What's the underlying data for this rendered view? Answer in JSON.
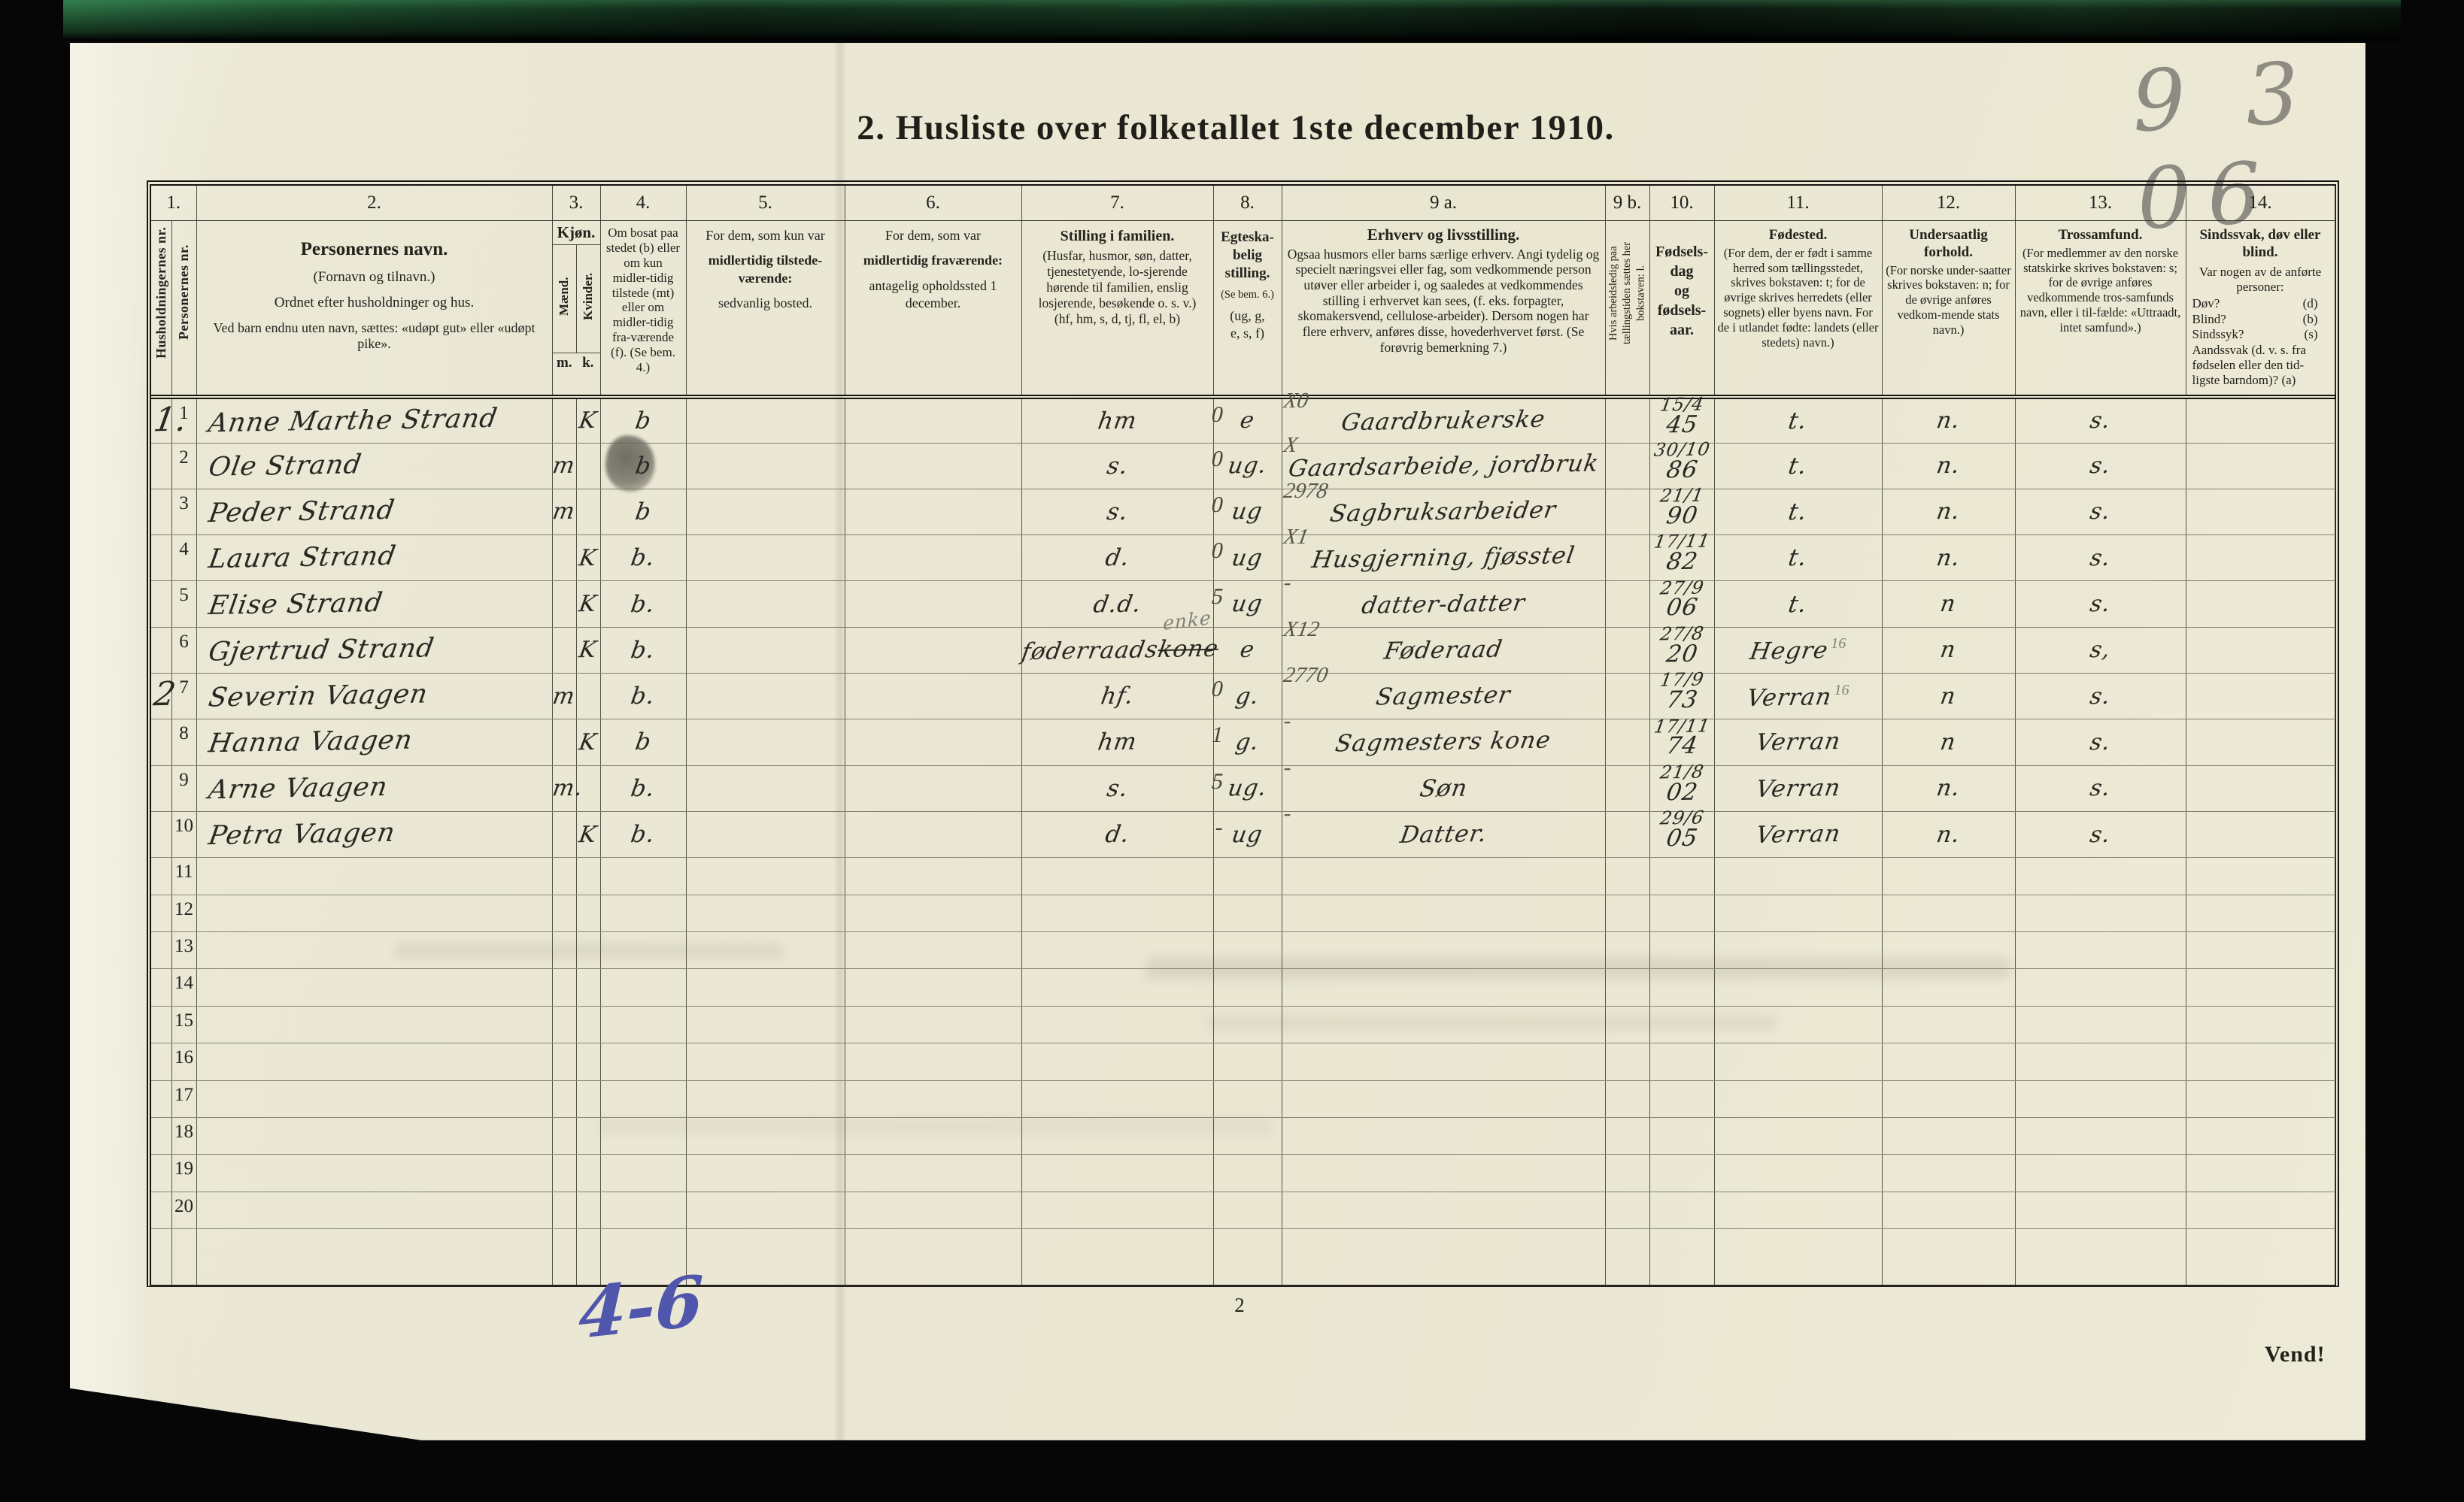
{
  "scan": {
    "title": "2. Husliste over folketallet 1ste december 1910.",
    "corner_note": "9 3 06",
    "blue_note": "4-6",
    "page_number": "2",
    "turn_label": "Vend!"
  },
  "table": {
    "col_numbers": [
      "1.",
      "2.",
      "3.",
      "4.",
      "5.",
      "6.",
      "7.",
      "8.",
      "9 a.",
      "9 b.",
      "10.",
      "11.",
      "12.",
      "13.",
      "14."
    ],
    "headers": {
      "hh_vertical": "Husholdningernes nr.",
      "pnr_vertical": "Personernes nr.",
      "name_title": "Personernes navn.",
      "name_sub1": "(Fornavn og tilnavn.)",
      "name_sub2": "Ordnet efter husholdninger og hus.",
      "name_sub3": "Ved barn endnu uten navn, sættes: «udøpt gut» eller «udøpt pike».",
      "kjon_title": "Kjøn.",
      "kjon_m": "Mænd.",
      "kjon_k": "Kvinder.",
      "kjon_m_abbr": "m.",
      "kjon_k_abbr": "k.",
      "bosat": "Om bosat paa stedet (b) eller om kun midler-tidig tilstede (mt) eller om midler-tidig fra-værende (f). (Se bem. 4.)",
      "tilstede_1": "For dem, som kun var",
      "tilstede_2": "midlertidig tilstede-værende:",
      "tilstede_3": "sedvanlig bosted.",
      "fravaer_1": "For dem, som var",
      "fravaer_2": "midlertidig fraværende:",
      "fravaer_3": "antagelig opholdssted 1 december.",
      "stilling_title": "Stilling i familien.",
      "stilling_body": "(Husfar, husmor, søn, datter, tjenestetyende, lo-sjerende hørende til familien, enslig losjerende, besøkende o. s. v.)",
      "stilling_codes": "(hf, hm, s, d, tj, fl, el, b)",
      "egteskap_title": "Egteska-\nbelig\nstilling.",
      "egteskap_note": "(Se bem. 6.)",
      "egteskap_codes": "(ug, g,\ne, s, f)",
      "erhverv_title": "Erhverv og livsstilling.",
      "erhverv_body": "Ogsaa husmors eller barns særlige erhverv. Angi tydelig og specielt næringsvei eller fag, som vedkommende person utøver eller arbeider i, og saaledes at vedkommendes stilling i erhvervet kan sees, (f. eks. forpagter, skomakersvend, cellulose-arbeider). Dersom nogen har flere erhverv, anføres disse, hovederhvervet først. (Se forøvrig bemerkning 7.)",
      "ledig_vertical": "Hvis arbeidsledig paa tællingstiden sættes her bokstaven: l.",
      "fodsel_title": "Fødsels-\ndag\nog\nfødsels-\naar.",
      "fodested_title": "Fødested.",
      "fodested_body": "(For dem, der er født i samme herred som tællingsstedet, skrives bokstaven: t; for de øvrige skrives herredets (eller sognets) eller byens navn. For de i utlandet fødte: landets (eller stedets) navn.)",
      "stat_title": "Undersaatlig forhold.",
      "stat_body": "(For norske under-saatter skrives bokstaven: n; for de øvrige anføres vedkom-mende stats navn.)",
      "tro_title": "Trossamfund.",
      "tro_body": "(For medlemmer av den norske statskirke skrives bokstaven: s; for de øvrige anføres vedkommende tros-samfunds navn, eller i til-fælde: «Uttraadt, intet samfund».)",
      "sinn_title": "Sindssvak, døv eller blind.",
      "sinn_sub": "Var nogen av de anførte personer:",
      "sinn_items": [
        {
          "q": "Døv?",
          "c": "(d)"
        },
        {
          "q": "Blind?",
          "c": "(b)"
        },
        {
          "q": "Sindssyk?",
          "c": "(s)"
        }
      ],
      "sinn_last": "Aandssvak (d. v. s. fra fødselen eller den tid-ligste barndom)? (a)"
    },
    "rows": [
      {
        "hh": "1.",
        "nr": "1",
        "name": "Anne Marthe Strand",
        "k": "K",
        "bosat": "b",
        "stilling": "hm",
        "code": "0",
        "egteskap": "e",
        "ecode": "X0",
        "erhverv": "Gaardbrukerske",
        "dag": "15/4",
        "aar": "45",
        "sted": "t.",
        "stat": "n.",
        "tro": "s."
      },
      {
        "nr": "2",
        "name": "Ole Strand",
        "m": "m",
        "bosat": "b",
        "smudge": true,
        "stilling": "s.",
        "code": "0",
        "egteskap": "ug.",
        "ecode": "X",
        "erhverv": "Gaardsarbeide, jordbruk",
        "dag": "30/10",
        "aar": "86",
        "sted": "t.",
        "stat": "n.",
        "tro": "s."
      },
      {
        "nr": "3",
        "name": "Peder Strand",
        "m": "m",
        "bosat": "b",
        "stilling": "s.",
        "code": "0",
        "egteskap": "ug",
        "ecode": "2978",
        "erhverv": "Sagbruksarbeider",
        "dag": "21/1",
        "aar": "90",
        "sted": "t.",
        "stat": "n.",
        "tro": "s."
      },
      {
        "nr": "4",
        "name": "Laura Strand",
        "k": "K",
        "bosat": "b.",
        "stilling": "d.",
        "code": "0",
        "egteskap": "ug",
        "ecode": "X1",
        "erhverv": "Husgjerning, fjøsstel",
        "dag": "17/11",
        "aar": "82",
        "sted": "t.",
        "stat": "n.",
        "tro": "s."
      },
      {
        "nr": "5",
        "name": "Elise Strand",
        "k": "K",
        "bosat": "b.",
        "stilling": "d.d.",
        "code": "5",
        "egteskap": "ug",
        "ecode": "-",
        "erhverv": "datter-datter",
        "dag": "27/9",
        "aar": "06",
        "sted": "t.",
        "stat": "n",
        "tro": "s."
      },
      {
        "nr": "6",
        "name": "Gjertrud Strand",
        "k": "K",
        "bosat": "b.",
        "stilling": "føderraads",
        "stilling_struck": "kone",
        "stilling_pencil": "enke",
        "egteskap": "e",
        "ecode": "X12",
        "erhverv": "Føderaad",
        "dag": "27/8",
        "aar": "20",
        "sted": "Hegre",
        "sted_sup": "16",
        "stat": "n",
        "tro": "s,"
      },
      {
        "hh": "2",
        "nr": "7",
        "name": "Severin Vaagen",
        "m": "m",
        "bosat": "b.",
        "stilling": "hf.",
        "code": "0",
        "egteskap": "g.",
        "ecode": "2770",
        "erhverv": "Sagmester",
        "dag": "17/9",
        "aar": "73",
        "sted": "Verran",
        "sted_sup": "16",
        "stat": "n",
        "tro": "s."
      },
      {
        "nr": "8",
        "name": "Hanna Vaagen",
        "k": "K",
        "bosat": "b",
        "stilling": "hm",
        "code": "1",
        "egteskap": "g.",
        "ecode": "-",
        "erhverv": "Sagmesters kone",
        "dag": "17/11",
        "aar": "74",
        "sted": "Verran",
        "stat": "n",
        "tro": "s."
      },
      {
        "nr": "9",
        "name": "Arne Vaagen",
        "m": "m.",
        "bosat": "b.",
        "stilling": "s.",
        "code": "5",
        "egteskap": "ug.",
        "ecode": "-",
        "erhverv": "Søn",
        "dag": "21/8",
        "aar": "02",
        "sted": "Verran",
        "stat": "n.",
        "tro": "s."
      },
      {
        "nr": "10",
        "name": "Petra Vaagen",
        "k": "K",
        "bosat": "b.",
        "stilling": "d.",
        "code": "-",
        "egteskap": "ug",
        "ecode": "-",
        "erhverv": "Datter.",
        "dag": "29/6",
        "aar": "05",
        "sted": "Verran",
        "stat": "n.",
        "tro": "s."
      },
      {
        "nr": "11"
      },
      {
        "nr": "12"
      },
      {
        "nr": "13"
      },
      {
        "nr": "14"
      },
      {
        "nr": "15"
      },
      {
        "nr": "16"
      },
      {
        "nr": "17"
      },
      {
        "nr": "18"
      },
      {
        "nr": "19"
      },
      {
        "nr": "20"
      }
    ]
  }
}
